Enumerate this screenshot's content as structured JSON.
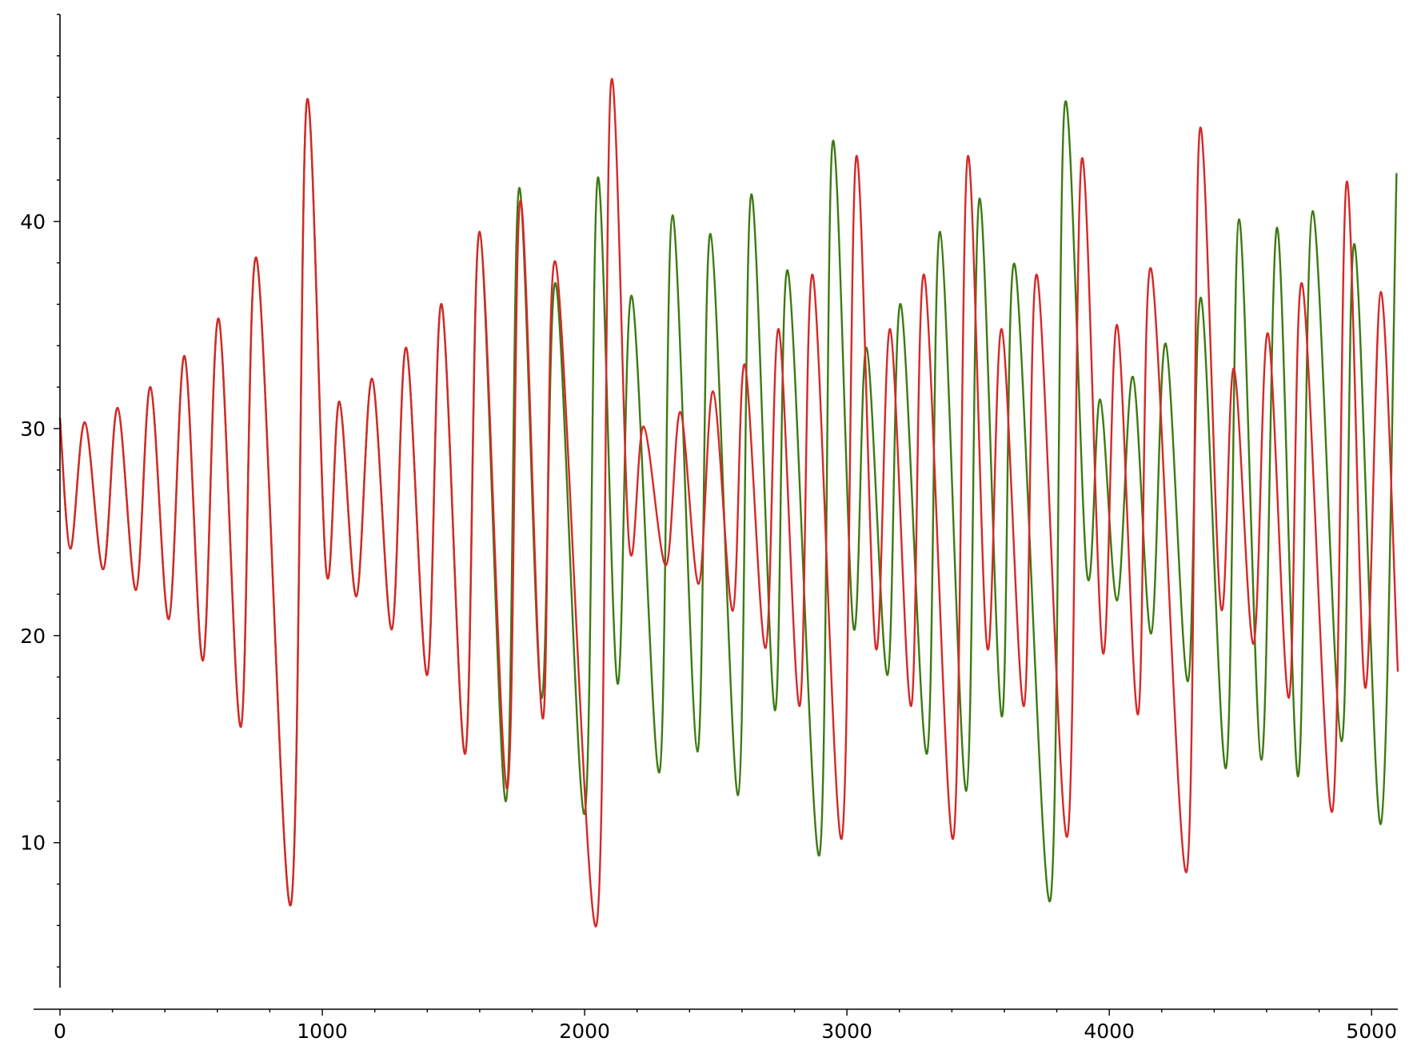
{
  "chart_data": {
    "type": "line",
    "title": "",
    "xlabel": "",
    "ylabel": "",
    "xlim": [
      0,
      5100
    ],
    "ylim": [
      3,
      50
    ],
    "x_major_ticks": [
      0,
      1000,
      2000,
      3000,
      4000,
      5000
    ],
    "x_minor_step": 200,
    "y_major_ticks": [
      10,
      20,
      30,
      40
    ],
    "y_minor_step": 2,
    "grid": false,
    "legend": "none",
    "series": [
      {
        "color": "#3d7a12",
        "points": [
          [
            0,
            30.5
          ],
          [
            40,
            24.2
          ],
          [
            95,
            30.3
          ],
          [
            165,
            23.2
          ],
          [
            220,
            31.0
          ],
          [
            290,
            22.2
          ],
          [
            345,
            32.0
          ],
          [
            415,
            20.8
          ],
          [
            475,
            33.5
          ],
          [
            545,
            18.8
          ],
          [
            605,
            35.3
          ],
          [
            690,
            15.6
          ],
          [
            750,
            38.2
          ],
          [
            880,
            7.0
          ],
          [
            940,
            45.7
          ],
          [
            1015,
            23.1
          ],
          [
            1065,
            31.3
          ],
          [
            1130,
            21.9
          ],
          [
            1190,
            32.4
          ],
          [
            1265,
            20.3
          ],
          [
            1320,
            33.9
          ],
          [
            1400,
            18.1
          ],
          [
            1455,
            36.0
          ],
          [
            1545,
            14.3
          ],
          [
            1600,
            39.5
          ],
          [
            1700,
            12.0
          ],
          [
            1750,
            41.6
          ],
          [
            1835,
            17.0
          ],
          [
            1890,
            37.0
          ],
          [
            2000,
            11.4
          ],
          [
            2050,
            42.1
          ],
          [
            2125,
            17.7
          ],
          [
            2180,
            36.4
          ],
          [
            2285,
            13.4
          ],
          [
            2335,
            40.3
          ],
          [
            2430,
            14.4
          ],
          [
            2480,
            39.4
          ],
          [
            2585,
            12.3
          ],
          [
            2635,
            41.3
          ],
          [
            2725,
            16.4
          ],
          [
            2775,
            37.6
          ],
          [
            2895,
            9.4
          ],
          [
            2945,
            43.8
          ],
          [
            3025,
            20.4
          ],
          [
            3075,
            33.9
          ],
          [
            3155,
            18.1
          ],
          [
            3205,
            36.0
          ],
          [
            3305,
            14.3
          ],
          [
            3355,
            39.5
          ],
          [
            3455,
            12.5
          ],
          [
            3505,
            41.1
          ],
          [
            3590,
            16.1
          ],
          [
            3640,
            37.9
          ],
          [
            3775,
            7.2
          ],
          [
            3830,
            45.6
          ],
          [
            3915,
            23.0
          ],
          [
            3965,
            31.4
          ],
          [
            4030,
            21.7
          ],
          [
            4090,
            32.5
          ],
          [
            4160,
            20.1
          ],
          [
            4215,
            34.1
          ],
          [
            4300,
            17.8
          ],
          [
            4350,
            36.3
          ],
          [
            4445,
            13.6
          ],
          [
            4495,
            40.1
          ],
          [
            4580,
            14.0
          ],
          [
            4640,
            39.7
          ],
          [
            4720,
            13.2
          ],
          [
            4775,
            40.5
          ],
          [
            4885,
            14.9
          ],
          [
            4935,
            38.9
          ],
          [
            5035,
            10.9
          ],
          [
            5095,
            42.3
          ]
        ]
      },
      {
        "color": "#d62828",
        "points": [
          [
            0,
            30.5
          ],
          [
            40,
            24.2
          ],
          [
            95,
            30.3
          ],
          [
            165,
            23.2
          ],
          [
            220,
            31.0
          ],
          [
            290,
            22.2
          ],
          [
            345,
            32.0
          ],
          [
            415,
            20.8
          ],
          [
            475,
            33.5
          ],
          [
            545,
            18.8
          ],
          [
            605,
            35.3
          ],
          [
            690,
            15.6
          ],
          [
            750,
            38.2
          ],
          [
            880,
            7.0
          ],
          [
            940,
            45.7
          ],
          [
            1015,
            23.1
          ],
          [
            1065,
            31.3
          ],
          [
            1130,
            21.9
          ],
          [
            1190,
            32.4
          ],
          [
            1265,
            20.3
          ],
          [
            1320,
            33.9
          ],
          [
            1400,
            18.1
          ],
          [
            1455,
            36.0
          ],
          [
            1545,
            14.3
          ],
          [
            1600,
            39.5
          ],
          [
            1705,
            12.6
          ],
          [
            1755,
            41.0
          ],
          [
            1840,
            16.0
          ],
          [
            1890,
            38.0
          ],
          [
            2045,
            6.0
          ],
          [
            2100,
            46.6
          ],
          [
            2170,
            24.4
          ],
          [
            2225,
            30.1
          ],
          [
            2310,
            23.4
          ],
          [
            2365,
            30.8
          ],
          [
            2435,
            22.5
          ],
          [
            2490,
            31.8
          ],
          [
            2565,
            21.2
          ],
          [
            2610,
            33.1
          ],
          [
            2690,
            19.4
          ],
          [
            2740,
            34.8
          ],
          [
            2820,
            16.6
          ],
          [
            2870,
            37.4
          ],
          [
            2980,
            10.2
          ],
          [
            3035,
            43.1
          ],
          [
            3110,
            19.4
          ],
          [
            3165,
            34.8
          ],
          [
            3245,
            16.6
          ],
          [
            3295,
            37.4
          ],
          [
            3405,
            10.2
          ],
          [
            3460,
            43.1
          ],
          [
            3535,
            19.4
          ],
          [
            3590,
            34.8
          ],
          [
            3675,
            16.6
          ],
          [
            3725,
            37.4
          ],
          [
            3840,
            10.3
          ],
          [
            3895,
            43.0
          ],
          [
            3975,
            19.2
          ],
          [
            4030,
            35.0
          ],
          [
            4110,
            16.2
          ],
          [
            4160,
            37.7
          ],
          [
            4295,
            8.6
          ],
          [
            4345,
            44.4
          ],
          [
            4425,
            21.4
          ],
          [
            4475,
            32.9
          ],
          [
            4550,
            19.6
          ],
          [
            4605,
            34.6
          ],
          [
            4685,
            17.0
          ],
          [
            4735,
            37.0
          ],
          [
            4850,
            11.5
          ],
          [
            4905,
            41.9
          ],
          [
            4975,
            17.5
          ],
          [
            5035,
            36.6
          ],
          [
            5100,
            18.3
          ]
        ]
      }
    ]
  }
}
